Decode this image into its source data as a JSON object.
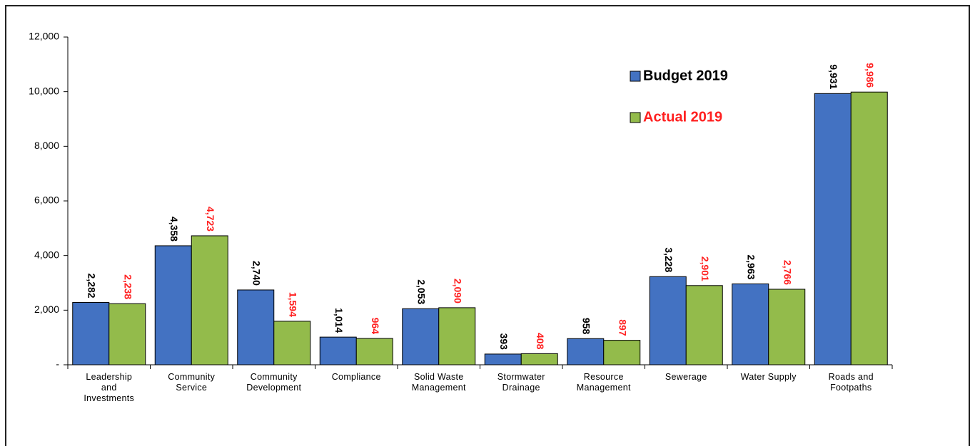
{
  "chart_data": {
    "type": "bar",
    "categories": [
      "Leadership and Investments",
      "Community Service",
      "Community Development",
      "Compliance",
      "Solid Waste Management",
      "Stormwater Drainage",
      "Resource Management",
      "Sewerage",
      "Water Supply",
      "Roads and Footpaths"
    ],
    "series": [
      {
        "name": "Budget 2019",
        "color": "#4372c2",
        "label_color": "#000000",
        "values": [
          2282,
          4358,
          2740,
          1014,
          2053,
          393,
          958,
          3228,
          2963,
          9931
        ],
        "value_labels": [
          "2,282",
          "4,358",
          "2,740",
          "1,014",
          "2,053",
          "393",
          "958",
          "3,228",
          "2,963",
          "9,931"
        ]
      },
      {
        "name": "Actual 2019",
        "color": "#93bb4b",
        "label_color": "#ff2020",
        "values": [
          2238,
          4723,
          1594,
          964,
          2090,
          408,
          897,
          2901,
          2766,
          9986
        ],
        "value_labels": [
          "2,238",
          "4,723",
          "1,594",
          "964",
          "2,090",
          "408",
          "897",
          "2,901",
          "2,766",
          "9,986"
        ]
      }
    ],
    "ylim": [
      0,
      12000
    ],
    "yticks": [
      {
        "value": 0,
        "label": "-"
      },
      {
        "value": 2000,
        "label": "2,000"
      },
      {
        "value": 4000,
        "label": "4,000"
      },
      {
        "value": 6000,
        "label": "6,000"
      },
      {
        "value": 8000,
        "label": "8,000"
      },
      {
        "value": 10000,
        "label": "10,000"
      },
      {
        "value": 12000,
        "label": "12,000"
      }
    ],
    "grid": false,
    "legend": "upper right"
  }
}
